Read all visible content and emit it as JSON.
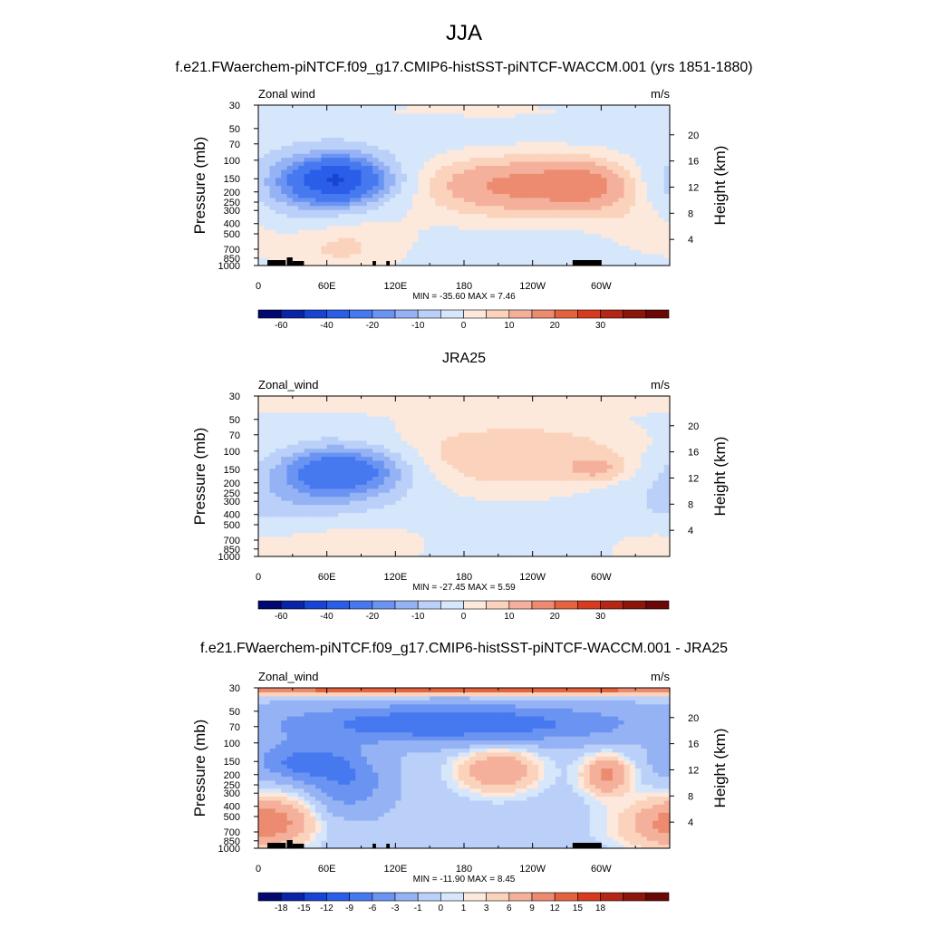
{
  "figure": {
    "title": "JJA"
  },
  "chart_data": [
    {
      "type": "heatmap",
      "title": "f.e21.FWaerchem-piNTCF.f09_g17.CMIP6-histSST-piNTCF-WACCM.001 (yrs 1851-1880)",
      "variable_label": "Zonal wind",
      "units": "m/s",
      "ylabel": "Pressure (mb)",
      "ylabel_right": "Height (km)",
      "y_ticks": [
        "30",
        "50",
        "70",
        "100",
        "150",
        "200",
        "250",
        "300",
        "400",
        "500",
        "700",
        "850",
        "1000"
      ],
      "y_right_ticks": [
        "20",
        "16",
        "12",
        "8",
        "4"
      ],
      "x_ticks": [
        "0",
        "60E",
        "120E",
        "180",
        "120W",
        "60W"
      ],
      "stats": "MIN = -35.60  MAX =   7.46",
      "colorbar_labels": [
        "-60",
        "-40",
        "-20",
        "-10",
        "0",
        "10",
        "20",
        "30"
      ],
      "features": [
        {
          "lon": 70,
          "p": 150,
          "value": -35.6
        },
        {
          "lon": 55,
          "p": 170,
          "value": -25
        },
        {
          "lon": 155,
          "p": 140,
          "value": -5
        },
        {
          "lon": 210,
          "p": 160,
          "value": 5
        },
        {
          "lon": 290,
          "p": 170,
          "value": 6
        },
        {
          "lon": 50,
          "p": 500,
          "value": 4
        },
        {
          "lon": 75,
          "p": 800,
          "value": 7.46
        },
        {
          "lon": 325,
          "p": 500,
          "value": 1
        }
      ]
    },
    {
      "type": "heatmap",
      "title": "JRA25",
      "variable_label": "Zonal_wind",
      "units": "m/s",
      "ylabel": "Pressure (mb)",
      "ylabel_right": "Height (km)",
      "y_ticks": [
        "30",
        "50",
        "70",
        "100",
        "150",
        "200",
        "250",
        "300",
        "400",
        "500",
        "700",
        "850",
        "1000"
      ],
      "y_right_ticks": [
        "20",
        "16",
        "12",
        "8",
        "4"
      ],
      "x_ticks": [
        "0",
        "60E",
        "120E",
        "180",
        "120W",
        "60W"
      ],
      "stats": "MIN = -27.45  MAX =   5.59",
      "colorbar_labels": [
        "-60",
        "-40",
        "-20",
        "-10",
        "0",
        "10",
        "20",
        "30"
      ],
      "features": [
        {
          "lon": 75,
          "p": 150,
          "value": -27.45
        },
        {
          "lon": 40,
          "p": 250,
          "value": -8
        },
        {
          "lon": 230,
          "p": 100,
          "value": 3
        },
        {
          "lon": 300,
          "p": 150,
          "value": 5.59
        },
        {
          "lon": 80,
          "p": 700,
          "value": 4
        },
        {
          "lon": 330,
          "p": 900,
          "value": 2
        }
      ]
    },
    {
      "type": "heatmap",
      "title": "f.e21.FWaerchem-piNTCF.f09_g17.CMIP6-histSST-piNTCF-WACCM.001 - JRA25",
      "variable_label": "Zonal_wind",
      "units": "m/s",
      "ylabel": "Pressure (mb)",
      "ylabel_right": "Height (km)",
      "y_ticks": [
        "30",
        "50",
        "70",
        "100",
        "150",
        "200",
        "250",
        "300",
        "400",
        "500",
        "700",
        "850",
        "1000"
      ],
      "y_right_ticks": [
        "20",
        "16",
        "12",
        "8",
        "4"
      ],
      "x_ticks": [
        "0",
        "60E",
        "120E",
        "180",
        "120W",
        "60W"
      ],
      "stats": "MIN = -11.90  MAX =   8.45",
      "colorbar_labels": [
        "-18",
        "-15",
        "-12",
        "-9",
        "-6",
        "-3",
        "-1",
        "0",
        "1",
        "3",
        "6",
        "9",
        "12",
        "15",
        "18"
      ],
      "features": [
        {
          "lon": 150,
          "p": 65,
          "value": -11.9
        },
        {
          "lon": 40,
          "p": 150,
          "value": -10
        },
        {
          "lon": 210,
          "p": 180,
          "value": 6
        },
        {
          "lon": 305,
          "p": 200,
          "value": 8.45
        },
        {
          "lon": 20,
          "p": 550,
          "value": 6
        },
        {
          "lon": 180,
          "p": 33,
          "value": 8
        }
      ]
    }
  ],
  "palettes": {
    "full": [
      "#020870",
      "#0a24a8",
      "#1844d4",
      "#2a5ee8",
      "#4679f0",
      "#6b94f2",
      "#95b3f4",
      "#bad0f8",
      "#d6e6fb",
      "#fde9dc",
      "#fbd2bc",
      "#f4b09a",
      "#ec8b70",
      "#e4633f",
      "#d63b20",
      "#b42616",
      "#8c160c",
      "#6a0808"
    ],
    "field_anchors": [
      -40,
      -30,
      -20,
      -15,
      -10,
      -5,
      0,
      3,
      6,
      10
    ],
    "diff_anchors": [
      -15,
      -12,
      -9,
      -6,
      -3,
      -1,
      0,
      1,
      3,
      6,
      9
    ]
  }
}
